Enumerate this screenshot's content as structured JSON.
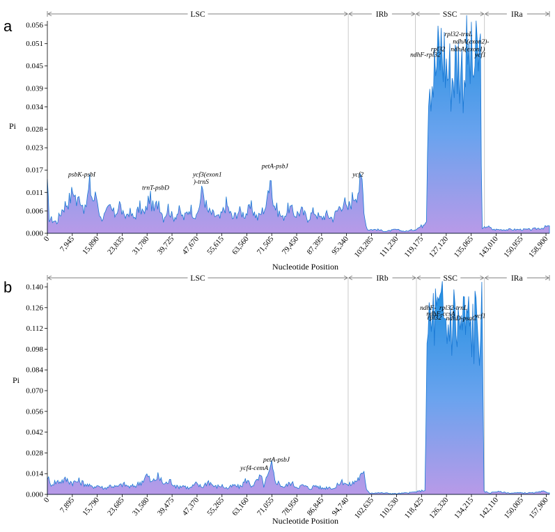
{
  "chart_data": [
    {
      "type": "area",
      "panel_label": "a",
      "ylabel": "Pi",
      "xlabel": "Nucleotide Position",
      "ylim": [
        0,
        0.056
      ],
      "xlim": [
        0,
        160000
      ],
      "yticks": [
        "0.000",
        "0.006",
        "0.011",
        "0.017",
        "0.023",
        "0.028",
        "0.034",
        "0.039",
        "0.045",
        "0.051",
        "0.056"
      ],
      "ytick_values": [
        0,
        0.006,
        0.011,
        0.017,
        0.023,
        0.028,
        0.034,
        0.039,
        0.045,
        0.051,
        0.056
      ],
      "xticks": [
        "0",
        "7,945",
        "15,890",
        "23,835",
        "31,780",
        "39,725",
        "47,670",
        "55,615",
        "63,560",
        "71,505",
        "79,450",
        "87,395",
        "95,340",
        "103,285",
        "111,230",
        "119,175",
        "127,120",
        "135,065",
        "143,010",
        "150,955",
        "158,900"
      ],
      "xtick_values": [
        0,
        7945,
        15890,
        23835,
        31780,
        39725,
        47670,
        55615,
        63560,
        71505,
        79450,
        87395,
        95340,
        103285,
        111230,
        119175,
        127120,
        135065,
        143010,
        150955,
        158900
      ],
      "regions": [
        {
          "name": "LSC",
          "start": 0,
          "end": 95900
        },
        {
          "name": "IRb",
          "start": 95900,
          "end": 117300
        },
        {
          "name": "SSC",
          "start": 117300,
          "end": 139300
        },
        {
          "name": "IRa",
          "start": 139300,
          "end": 160000
        }
      ],
      "annotations": [
        {
          "text": "psbK-psbI",
          "x": 11000,
          "y": 0.0153
        },
        {
          "text": "trnT-psbD",
          "x": 34500,
          "y": 0.0117
        },
        {
          "text": "ycf3(exon1",
          "x": 51000,
          "y": 0.0153
        },
        {
          "text": ")-trnS",
          "x": 49000,
          "y": 0.0133
        },
        {
          "text": "petA-psbJ",
          "x": 72500,
          "y": 0.0175
        },
        {
          "text": "ycf2",
          "x": 99000,
          "y": 0.0153
        },
        {
          "text": "rpl32-trnL",
          "x": 131000,
          "y": 0.053
        },
        {
          "text": "ndhA(exon2)-",
          "x": 135000,
          "y": 0.051
        },
        {
          "text": "rpl32",
          "x": 124500,
          "y": 0.049
        },
        {
          "text": "ndhA(exon1)",
          "x": 134000,
          "y": 0.049
        },
        {
          "text": "ndhF-rpl32",
          "x": 120500,
          "y": 0.0475
        },
        {
          "text": "ycf1",
          "x": 138000,
          "y": 0.0475
        }
      ],
      "series_peaks": [
        [
          0,
          0.012
        ],
        [
          600,
          0.004
        ],
        [
          3000,
          0.003
        ],
        [
          5000,
          0.007
        ],
        [
          7000,
          0.009
        ],
        [
          8500,
          0.012
        ],
        [
          9300,
          0.008
        ],
        [
          10500,
          0.01
        ],
        [
          12000,
          0.006
        ],
        [
          13500,
          0.013
        ],
        [
          14500,
          0.009
        ],
        [
          15700,
          0.01
        ],
        [
          17000,
          0.004
        ],
        [
          18500,
          0.005
        ],
        [
          20000,
          0.007
        ],
        [
          21500,
          0.005
        ],
        [
          23000,
          0.008
        ],
        [
          24500,
          0.004
        ],
        [
          26000,
          0.006
        ],
        [
          27500,
          0.004
        ],
        [
          29500,
          0.007
        ],
        [
          31000,
          0.005
        ],
        [
          32500,
          0.01
        ],
        [
          34000,
          0.006
        ],
        [
          35500,
          0.009
        ],
        [
          37000,
          0.004
        ],
        [
          38500,
          0.007
        ],
        [
          40000,
          0.004
        ],
        [
          42000,
          0.006
        ],
        [
          43500,
          0.004
        ],
        [
          45500,
          0.007
        ],
        [
          47500,
          0.004
        ],
        [
          49500,
          0.012
        ],
        [
          51000,
          0.006
        ],
        [
          53000,
          0.005
        ],
        [
          55000,
          0.004
        ],
        [
          57000,
          0.008
        ],
        [
          59000,
          0.004
        ],
        [
          61000,
          0.006
        ],
        [
          63000,
          0.005
        ],
        [
          65000,
          0.007
        ],
        [
          67000,
          0.004
        ],
        [
          68500,
          0.006
        ],
        [
          70000,
          0.008
        ],
        [
          71000,
          0.018
        ],
        [
          72000,
          0.008
        ],
        [
          73500,
          0.006
        ],
        [
          75000,
          0.004
        ],
        [
          77000,
          0.007
        ],
        [
          79000,
          0.005
        ],
        [
          81000,
          0.006
        ],
        [
          83000,
          0.004
        ],
        [
          85000,
          0.006
        ],
        [
          87000,
          0.004
        ],
        [
          89000,
          0.005
        ],
        [
          91000,
          0.004
        ],
        [
          93000,
          0.007
        ],
        [
          94500,
          0.009
        ],
        [
          95500,
          0.006
        ],
        [
          97500,
          0.01
        ],
        [
          99000,
          0.012
        ],
        [
          100300,
          0.014
        ],
        [
          101200,
          0.004
        ],
        [
          102000,
          0.001
        ],
        [
          105000,
          0.001
        ],
        [
          108000,
          0.0005
        ],
        [
          111000,
          0.001
        ],
        [
          114000,
          0.0005
        ],
        [
          117000,
          0.001
        ],
        [
          119500,
          0.002
        ],
        [
          120800,
          0.004
        ],
        [
          121500,
          0.045
        ],
        [
          123000,
          0.042
        ],
        [
          124500,
          0.047
        ],
        [
          125500,
          0.05
        ],
        [
          126500,
          0.048
        ],
        [
          127500,
          0.044
        ],
        [
          129000,
          0.043
        ],
        [
          131000,
          0.047
        ],
        [
          132500,
          0.044
        ],
        [
          134000,
          0.048
        ],
        [
          135500,
          0.044
        ],
        [
          137000,
          0.046
        ],
        [
          138000,
          0.048
        ],
        [
          138600,
          0.001
        ],
        [
          140000,
          0.002
        ],
        [
          142000,
          0.001
        ],
        [
          146000,
          0.001
        ],
        [
          150000,
          0.001
        ],
        [
          154000,
          0.001
        ],
        [
          158000,
          0.0015
        ],
        [
          160000,
          0.002
        ]
      ]
    },
    {
      "type": "area",
      "panel_label": "b",
      "ylabel": "Pi",
      "xlabel": "Nucleotide Position",
      "ylim": [
        0,
        0.14
      ],
      "xlim": [
        0,
        158900
      ],
      "yticks": [
        "0.000",
        "0.014",
        "0.028",
        "0.042",
        "0.056",
        "0.070",
        "0.084",
        "0.098",
        "0.112",
        "0.126",
        "0.140"
      ],
      "ytick_values": [
        0,
        0.014,
        0.028,
        0.042,
        0.056,
        0.07,
        0.084,
        0.098,
        0.112,
        0.126,
        0.14
      ],
      "xticks": [
        "0",
        "7,895",
        "15,790",
        "23,685",
        "31,580",
        "39,475",
        "47,370",
        "55,265",
        "63,160",
        "71,055",
        "78,950",
        "86,845",
        "94,740",
        "102,635",
        "110,530",
        "118,425",
        "126,320",
        "134,215",
        "142,110",
        "150,005",
        "157,900"
      ],
      "xtick_values": [
        0,
        7895,
        15790,
        23685,
        31580,
        39475,
        47370,
        55265,
        63160,
        71055,
        78950,
        86845,
        94740,
        102635,
        110530,
        118425,
        126320,
        134215,
        142110,
        150005,
        157900
      ],
      "regions": [
        {
          "name": "LSC",
          "start": 0,
          "end": 95200
        },
        {
          "name": "IRb",
          "start": 95200,
          "end": 116800
        },
        {
          "name": "SSC",
          "start": 116800,
          "end": 138300
        },
        {
          "name": "IRa",
          "start": 138300,
          "end": 158900
        }
      ],
      "annotations": [
        {
          "text": "ycf4-cemA",
          "x": 65500,
          "y": 0.0165
        },
        {
          "text": "petA-psbJ",
          "x": 72500,
          "y": 0.022
        },
        {
          "text": "ndhF-",
          "x": 120500,
          "y": 0.1245
        },
        {
          "text": "rpl32-trnL",
          "x": 128500,
          "y": 0.1245
        },
        {
          "text": "ndhF-ccsA",
          "x": 124500,
          "y": 0.1205
        },
        {
          "text": "rpl32",
          "x": 122500,
          "y": 0.118
        },
        {
          "text": "ndhD-psaC",
          "x": 131000,
          "y": 0.1175
        },
        {
          "text": "ycf1",
          "x": 137000,
          "y": 0.119
        }
      ],
      "series_peaks": [
        [
          0,
          0.013
        ],
        [
          800,
          0.007
        ],
        [
          2000,
          0.008
        ],
        [
          4000,
          0.009
        ],
        [
          6000,
          0.01
        ],
        [
          8000,
          0.008
        ],
        [
          10000,
          0.009
        ],
        [
          12000,
          0.007
        ],
        [
          14000,
          0.005
        ],
        [
          16000,
          0.006
        ],
        [
          18000,
          0.004
        ],
        [
          20000,
          0.006
        ],
        [
          22000,
          0.005
        ],
        [
          24000,
          0.007
        ],
        [
          26000,
          0.005
        ],
        [
          28000,
          0.006
        ],
        [
          30000,
          0.009
        ],
        [
          31500,
          0.013
        ],
        [
          33000,
          0.008
        ],
        [
          35000,
          0.012
        ],
        [
          37000,
          0.007
        ],
        [
          39000,
          0.009
        ],
        [
          41000,
          0.005
        ],
        [
          43000,
          0.006
        ],
        [
          45000,
          0.004
        ],
        [
          47000,
          0.007
        ],
        [
          49000,
          0.005
        ],
        [
          51000,
          0.009
        ],
        [
          53000,
          0.005
        ],
        [
          55000,
          0.006
        ],
        [
          57000,
          0.004
        ],
        [
          59000,
          0.006
        ],
        [
          61000,
          0.005
        ],
        [
          63000,
          0.01
        ],
        [
          64500,
          0.006
        ],
        [
          66000,
          0.008
        ],
        [
          67500,
          0.012
        ],
        [
          68500,
          0.006
        ],
        [
          70000,
          0.013
        ],
        [
          71000,
          0.019
        ],
        [
          72000,
          0.01
        ],
        [
          73500,
          0.007
        ],
        [
          75000,
          0.005
        ],
        [
          77000,
          0.008
        ],
        [
          79000,
          0.005
        ],
        [
          81000,
          0.006
        ],
        [
          83000,
          0.004
        ],
        [
          85000,
          0.006
        ],
        [
          87000,
          0.004
        ],
        [
          89000,
          0.005
        ],
        [
          91000,
          0.004
        ],
        [
          92500,
          0.008
        ],
        [
          94000,
          0.009
        ],
        [
          95000,
          0.006
        ],
        [
          97000,
          0.008
        ],
        [
          99000,
          0.012
        ],
        [
          100200,
          0.013
        ],
        [
          101000,
          0.004
        ],
        [
          102000,
          0.001
        ],
        [
          106000,
          0.001
        ],
        [
          110000,
          0.0005
        ],
        [
          114000,
          0.001
        ],
        [
          117500,
          0.002
        ],
        [
          119500,
          0.003
        ],
        [
          120500,
          0.122
        ],
        [
          121500,
          0.112
        ],
        [
          122500,
          0.124
        ],
        [
          123500,
          0.115
        ],
        [
          125000,
          0.12
        ],
        [
          126500,
          0.112
        ],
        [
          128000,
          0.123
        ],
        [
          130000,
          0.114
        ],
        [
          132000,
          0.117
        ],
        [
          134000,
          0.113
        ],
        [
          136000,
          0.116
        ],
        [
          137500,
          0.118
        ],
        [
          138200,
          0.002
        ],
        [
          140000,
          0.001
        ],
        [
          142000,
          0.002
        ],
        [
          146000,
          0.001
        ],
        [
          150000,
          0.001
        ],
        [
          154000,
          0.001
        ],
        [
          157000,
          0.002
        ],
        [
          158900,
          0.001
        ]
      ]
    }
  ]
}
